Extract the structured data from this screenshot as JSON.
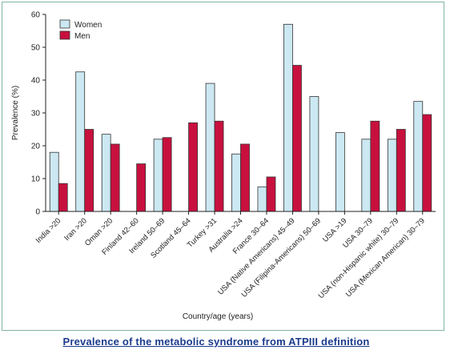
{
  "caption": "Prevalence of the metabolic syndrome from ATPIII definition",
  "colors": {
    "women": "#cce8f2",
    "men": "#c8103e",
    "stroke": "#333333",
    "frame": "#7fb3a6",
    "caption": "#1a3a8c"
  },
  "chart_data": {
    "type": "bar",
    "title": "",
    "xlabel": "Country/age (years)",
    "ylabel": "Prevalence (%)",
    "ylim": [
      0,
      60
    ],
    "yticks": [
      0,
      10,
      20,
      30,
      40,
      50,
      60
    ],
    "grid": false,
    "legend_position": "top-left",
    "categories": [
      "India >20",
      "Iran >20",
      "Oman >20",
      "Finland 42–60",
      "Ireland 50–69",
      "Scotland 45–64",
      "Turkey >31",
      "Australia >24",
      "France 30–64",
      "USA (Native Americans) 45–49",
      "USA (Filipina-Americans) 50–69",
      "USA >19",
      "USA 30–79",
      "USA (non-Hispanic white) 30–79",
      "USA (Mexican American) 30–79"
    ],
    "series": [
      {
        "name": "Women",
        "values": [
          18,
          42.5,
          23.5,
          null,
          22,
          null,
          39,
          17.5,
          7.5,
          57,
          35,
          24,
          22,
          22,
          33.5
        ]
      },
      {
        "name": "Men",
        "values": [
          8.5,
          25,
          20.5,
          14.5,
          22.5,
          27,
          27.5,
          20.5,
          10.5,
          44.5,
          null,
          null,
          27.5,
          25,
          29.5
        ]
      }
    ]
  }
}
